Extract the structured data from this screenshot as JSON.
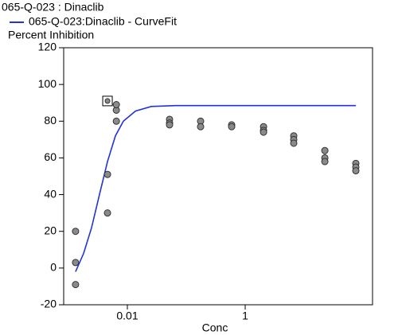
{
  "chart_data": {
    "type": "scatter",
    "title": "065-Q-023  : Dinaclib",
    "ylabel": "Percent Inhibition",
    "xlabel": "Conc",
    "log_x": true,
    "xlim": [
      0.00083,
      145
    ],
    "xticks": [
      0.01,
      1
    ],
    "ylim": [
      -20,
      120
    ],
    "yticks": [
      -20,
      0,
      20,
      40,
      60,
      80,
      100,
      120
    ],
    "curve": {
      "name": "065-Q-023:Dinaclib - CurveFit",
      "color": "#2233dd",
      "x": [
        0.00132,
        0.00181,
        0.00247,
        0.00336,
        0.0046,
        0.00627,
        0.00856,
        0.0137,
        0.0254,
        0.0647,
        75.5
      ],
      "values": [
        -2,
        8,
        22,
        40,
        58,
        72,
        80,
        85.5,
        88,
        88.5,
        88.5
      ]
    },
    "points": {
      "color": "#8a8a8a",
      "x": [
        0.00132,
        0.00132,
        0.00132,
        0.0046,
        0.0046,
        0.0065,
        0.0065,
        0.0065,
        0.052,
        0.052,
        0.052,
        0.175,
        0.175,
        0.589,
        0.589,
        2.05,
        2.05,
        2.05,
        6.67,
        6.67,
        6.67,
        22.5,
        22.5,
        22.5,
        75.5,
        75.5,
        75.5
      ],
      "values": [
        20,
        3,
        -9,
        51,
        30,
        80,
        86,
        89,
        81,
        79,
        78,
        80,
        77,
        78,
        77,
        77,
        75,
        74,
        72,
        70,
        68,
        64,
        60,
        58,
        57,
        55,
        53
      ]
    },
    "excluded": {
      "x": 0.0046,
      "value": 91
    }
  }
}
